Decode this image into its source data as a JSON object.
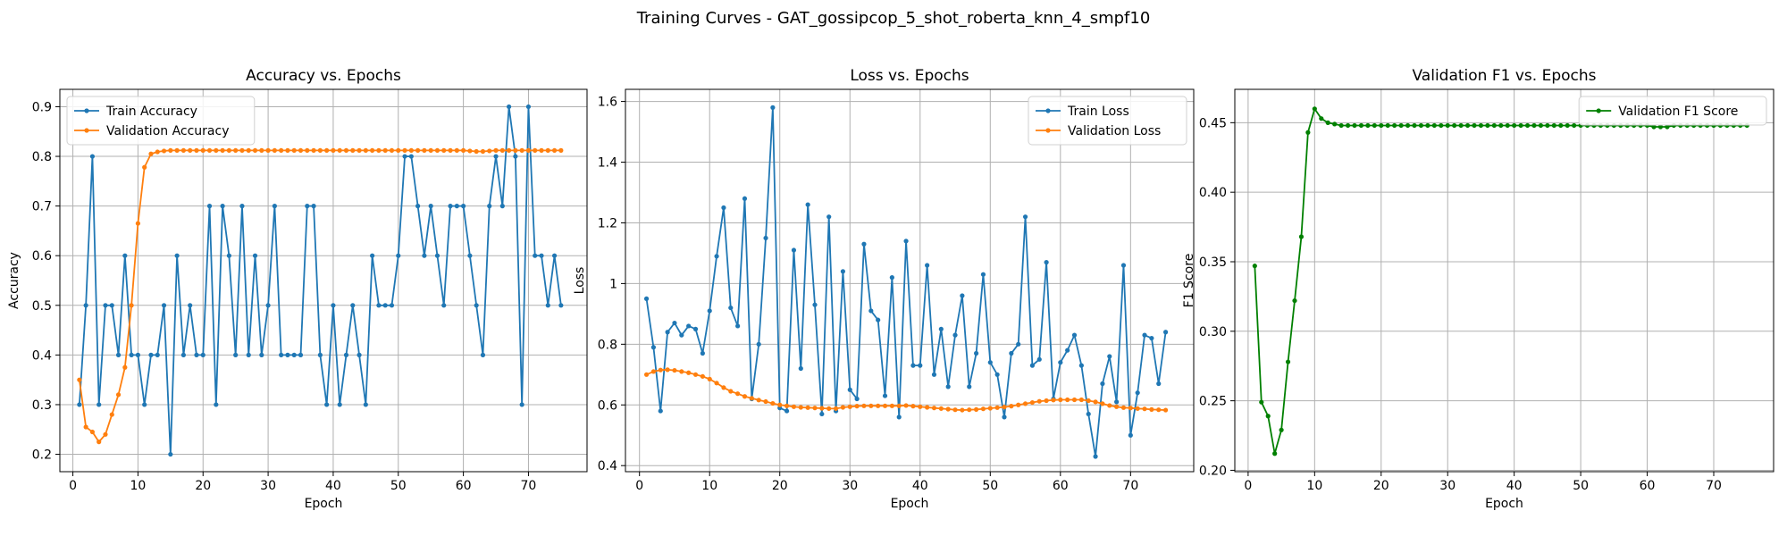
{
  "figure": {
    "suptitle": "Training Curves - GAT_gossipcop_5_shot_roberta_knn_4_smpf10"
  },
  "colors": {
    "blue": "#1f77b4",
    "orange": "#ff7f0e",
    "green": "#008000"
  },
  "chart_data": [
    {
      "type": "line",
      "title": "Accuracy vs. Epochs",
      "xlabel": "Epoch",
      "ylabel": "Accuracy",
      "xlim": [
        -2,
        79
      ],
      "ylim": [
        0.165,
        0.935
      ],
      "xticks": [
        0,
        10,
        20,
        30,
        40,
        50,
        60,
        70
      ],
      "yticks": [
        0.2,
        0.3,
        0.4,
        0.5,
        0.6,
        0.7,
        0.8,
        0.9
      ],
      "grid": true,
      "legend": "top-left",
      "x": [
        1,
        2,
        3,
        4,
        5,
        6,
        7,
        8,
        9,
        10,
        11,
        12,
        13,
        14,
        15,
        16,
        17,
        18,
        19,
        20,
        21,
        22,
        23,
        24,
        25,
        26,
        27,
        28,
        29,
        30,
        31,
        32,
        33,
        34,
        35,
        36,
        37,
        38,
        39,
        40,
        41,
        42,
        43,
        44,
        45,
        46,
        47,
        48,
        49,
        50,
        51,
        52,
        53,
        54,
        55,
        56,
        57,
        58,
        59,
        60,
        61,
        62,
        63,
        64,
        65,
        66,
        67,
        68,
        69,
        70,
        71,
        72,
        73,
        74,
        75
      ],
      "series": [
        {
          "name": "Train Accuracy",
          "color": "blue",
          "values": [
            0.3,
            0.5,
            0.8,
            0.3,
            0.5,
            0.5,
            0.4,
            0.6,
            0.4,
            0.4,
            0.3,
            0.4,
            0.4,
            0.5,
            0.2,
            0.6,
            0.4,
            0.5,
            0.4,
            0.4,
            0.7,
            0.3,
            0.7,
            0.6,
            0.4,
            0.7,
            0.4,
            0.6,
            0.4,
            0.5,
            0.7,
            0.4,
            0.4,
            0.4,
            0.4,
            0.7,
            0.7,
            0.4,
            0.3,
            0.5,
            0.3,
            0.4,
            0.5,
            0.4,
            0.3,
            0.6,
            0.5,
            0.5,
            0.5,
            0.6,
            0.8,
            0.8,
            0.7,
            0.6,
            0.7,
            0.6,
            0.5,
            0.7,
            0.7,
            0.7,
            0.6,
            0.5,
            0.4,
            0.7,
            0.8,
            0.7,
            0.9,
            0.8,
            0.3,
            0.9,
            0.6,
            0.6,
            0.5,
            0.6,
            0.5
          ]
        },
        {
          "name": "Validation Accuracy",
          "color": "orange",
          "values": [
            0.35,
            0.255,
            0.245,
            0.225,
            0.24,
            0.28,
            0.32,
            0.375,
            0.5,
            0.665,
            0.778,
            0.805,
            0.809,
            0.811,
            0.812,
            0.812,
            0.812,
            0.812,
            0.812,
            0.812,
            0.812,
            0.812,
            0.812,
            0.812,
            0.812,
            0.812,
            0.812,
            0.812,
            0.812,
            0.812,
            0.812,
            0.812,
            0.812,
            0.812,
            0.812,
            0.812,
            0.812,
            0.812,
            0.812,
            0.812,
            0.812,
            0.812,
            0.812,
            0.812,
            0.812,
            0.812,
            0.812,
            0.812,
            0.812,
            0.812,
            0.812,
            0.812,
            0.812,
            0.812,
            0.812,
            0.812,
            0.812,
            0.812,
            0.812,
            0.812,
            0.811,
            0.81,
            0.81,
            0.811,
            0.812,
            0.812,
            0.812,
            0.812,
            0.812,
            0.812,
            0.812,
            0.812,
            0.812,
            0.812,
            0.812
          ]
        }
      ]
    },
    {
      "type": "line",
      "title": "Loss vs. Epochs",
      "xlabel": "Epoch",
      "ylabel": "Loss",
      "xlim": [
        -2,
        79
      ],
      "ylim": [
        0.38,
        1.64
      ],
      "xticks": [
        0,
        10,
        20,
        30,
        40,
        50,
        60,
        70
      ],
      "yticks": [
        0.4,
        0.6,
        0.8,
        1.0,
        1.2,
        1.4,
        1.6
      ],
      "grid": true,
      "legend": "top-right",
      "x": [
        1,
        2,
        3,
        4,
        5,
        6,
        7,
        8,
        9,
        10,
        11,
        12,
        13,
        14,
        15,
        16,
        17,
        18,
        19,
        20,
        21,
        22,
        23,
        24,
        25,
        26,
        27,
        28,
        29,
        30,
        31,
        32,
        33,
        34,
        35,
        36,
        37,
        38,
        39,
        40,
        41,
        42,
        43,
        44,
        45,
        46,
        47,
        48,
        49,
        50,
        51,
        52,
        53,
        54,
        55,
        56,
        57,
        58,
        59,
        60,
        61,
        62,
        63,
        64,
        65,
        66,
        67,
        68,
        69,
        70,
        71,
        72,
        73,
        74,
        75
      ],
      "series": [
        {
          "name": "Train Loss",
          "color": "blue",
          "values": [
            0.95,
            0.79,
            0.58,
            0.84,
            0.87,
            0.83,
            0.86,
            0.85,
            0.77,
            0.91,
            1.09,
            1.25,
            0.92,
            0.86,
            1.28,
            0.62,
            0.8,
            1.15,
            1.58,
            0.59,
            0.58,
            1.11,
            0.72,
            1.26,
            0.93,
            0.57,
            1.22,
            0.58,
            1.04,
            0.65,
            0.62,
            1.13,
            0.91,
            0.88,
            0.63,
            1.02,
            0.56,
            1.14,
            0.73,
            0.73,
            1.06,
            0.7,
            0.85,
            0.66,
            0.83,
            0.96,
            0.66,
            0.77,
            1.03,
            0.74,
            0.7,
            0.56,
            0.77,
            0.8,
            1.22,
            0.73,
            0.75,
            1.07,
            0.62,
            0.74,
            0.78,
            0.83,
            0.73,
            0.57,
            0.43,
            0.67,
            0.76,
            0.61,
            1.06,
            0.5,
            0.64,
            0.83,
            0.82,
            0.67,
            0.84
          ]
        },
        {
          "name": "Validation Loss",
          "color": "orange",
          "values": [
            0.7,
            0.71,
            0.715,
            0.716,
            0.714,
            0.71,
            0.706,
            0.7,
            0.694,
            0.685,
            0.672,
            0.657,
            0.645,
            0.637,
            0.628,
            0.622,
            0.616,
            0.611,
            0.605,
            0.6,
            0.597,
            0.594,
            0.592,
            0.591,
            0.59,
            0.589,
            0.588,
            0.588,
            0.592,
            0.594,
            0.596,
            0.597,
            0.597,
            0.597,
            0.597,
            0.597,
            0.597,
            0.598,
            0.596,
            0.594,
            0.592,
            0.59,
            0.588,
            0.586,
            0.584,
            0.583,
            0.584,
            0.585,
            0.587,
            0.589,
            0.591,
            0.593,
            0.596,
            0.6,
            0.604,
            0.608,
            0.612,
            0.614,
            0.616,
            0.617,
            0.617,
            0.617,
            0.617,
            0.614,
            0.61,
            0.604,
            0.598,
            0.594,
            0.591,
            0.59,
            0.588,
            0.587,
            0.585,
            0.584,
            0.583
          ]
        }
      ]
    },
    {
      "type": "line",
      "title": "Validation F1 vs. Epochs",
      "xlabel": "Epoch",
      "ylabel": "F1 Score",
      "xlim": [
        -2,
        79
      ],
      "ylim": [
        0.199,
        0.474
      ],
      "xticks": [
        0,
        10,
        20,
        30,
        40,
        50,
        60,
        70
      ],
      "yticks": [
        0.2,
        0.25,
        0.3,
        0.35,
        0.4,
        0.45
      ],
      "ytick_labels": [
        "0.20",
        "0.25",
        "0.30",
        "0.35",
        "0.40",
        "0.45"
      ],
      "grid": true,
      "legend": "top-right",
      "x": [
        1,
        2,
        3,
        4,
        5,
        6,
        7,
        8,
        9,
        10,
        11,
        12,
        13,
        14,
        15,
        16,
        17,
        18,
        19,
        20,
        21,
        22,
        23,
        24,
        25,
        26,
        27,
        28,
        29,
        30,
        31,
        32,
        33,
        34,
        35,
        36,
        37,
        38,
        39,
        40,
        41,
        42,
        43,
        44,
        45,
        46,
        47,
        48,
        49,
        50,
        51,
        52,
        53,
        54,
        55,
        56,
        57,
        58,
        59,
        60,
        61,
        62,
        63,
        64,
        65,
        66,
        67,
        68,
        69,
        70,
        71,
        72,
        73,
        74,
        75
      ],
      "series": [
        {
          "name": "Validation F1 Score",
          "color": "green",
          "values": [
            0.347,
            0.249,
            0.239,
            0.212,
            0.229,
            0.278,
            0.322,
            0.368,
            0.443,
            0.46,
            0.453,
            0.45,
            0.449,
            0.448,
            0.448,
            0.448,
            0.448,
            0.448,
            0.448,
            0.448,
            0.448,
            0.448,
            0.448,
            0.448,
            0.448,
            0.448,
            0.448,
            0.448,
            0.448,
            0.448,
            0.448,
            0.448,
            0.448,
            0.448,
            0.448,
            0.448,
            0.448,
            0.448,
            0.448,
            0.448,
            0.448,
            0.448,
            0.448,
            0.448,
            0.448,
            0.448,
            0.448,
            0.448,
            0.448,
            0.448,
            0.448,
            0.448,
            0.448,
            0.448,
            0.448,
            0.448,
            0.448,
            0.448,
            0.448,
            0.448,
            0.447,
            0.447,
            0.447,
            0.448,
            0.448,
            0.448,
            0.448,
            0.448,
            0.448,
            0.448,
            0.448,
            0.448,
            0.448,
            0.448,
            0.448
          ]
        }
      ]
    }
  ]
}
